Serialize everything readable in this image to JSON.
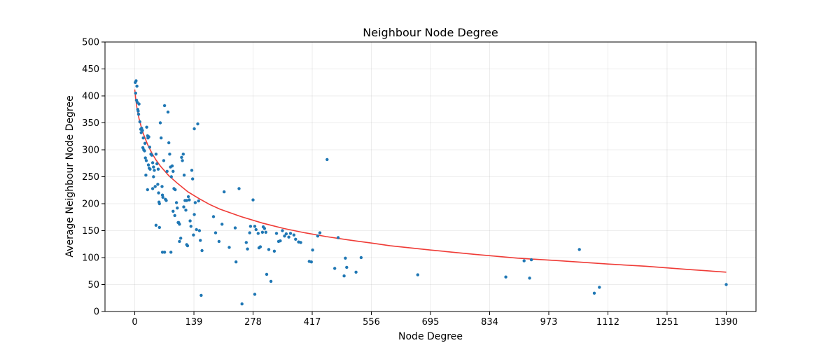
{
  "chart_data": {
    "type": "scatter",
    "title": "Neighbour Node Degree",
    "xlabel": "Node Degree",
    "ylabel": "Average Neighbour Node Degree",
    "xlim": [
      -70,
      1460
    ],
    "ylim": [
      0,
      500
    ],
    "xticks": [
      0,
      139,
      278,
      417,
      556,
      695,
      834,
      973,
      1112,
      1251,
      1390
    ],
    "yticks": [
      0,
      50,
      100,
      150,
      200,
      250,
      300,
      350,
      400,
      450,
      500
    ],
    "grid": true,
    "colors": {
      "points": "#1f77b4",
      "fit": "#ef3b36"
    },
    "series": [
      {
        "type": "scatter",
        "points": [
          [
            1,
            425
          ],
          [
            3,
            428
          ],
          [
            5,
            418
          ],
          [
            2,
            405
          ],
          [
            4,
            392
          ],
          [
            6,
            388
          ],
          [
            7,
            375
          ],
          [
            8,
            372
          ],
          [
            9,
            366
          ],
          [
            10,
            385
          ],
          [
            12,
            352
          ],
          [
            14,
            338
          ],
          [
            15,
            332
          ],
          [
            16,
            340
          ],
          [
            18,
            336
          ],
          [
            20,
            322
          ],
          [
            19,
            304
          ],
          [
            21,
            300
          ],
          [
            23,
            298
          ],
          [
            24,
            312
          ],
          [
            25,
            285
          ],
          [
            27,
            280
          ],
          [
            26,
            253
          ],
          [
            28,
            342
          ],
          [
            30,
            326
          ],
          [
            31,
            322
          ],
          [
            33,
            324
          ],
          [
            35,
            305
          ],
          [
            32,
            272
          ],
          [
            34,
            266
          ],
          [
            36,
            264
          ],
          [
            38,
            292
          ],
          [
            40,
            290
          ],
          [
            42,
            276
          ],
          [
            44,
            268
          ],
          [
            46,
            262
          ],
          [
            30,
            226
          ],
          [
            42,
            228
          ],
          [
            44,
            250
          ],
          [
            48,
            232
          ],
          [
            50,
            292
          ],
          [
            52,
            274
          ],
          [
            54,
            236
          ],
          [
            55,
            264
          ],
          [
            56,
            220
          ],
          [
            57,
            203
          ],
          [
            58,
            200
          ],
          [
            60,
            350
          ],
          [
            62,
            322
          ],
          [
            64,
            232
          ],
          [
            65,
            216
          ],
          [
            66,
            212
          ],
          [
            68,
            280
          ],
          [
            70,
            382
          ],
          [
            72,
            208
          ],
          [
            74,
            206
          ],
          [
            76,
            260
          ],
          [
            78,
            370
          ],
          [
            80,
            313
          ],
          [
            82,
            292
          ],
          [
            84,
            268
          ],
          [
            86,
            250
          ],
          [
            88,
            270
          ],
          [
            90,
            260
          ],
          [
            92,
            228
          ],
          [
            95,
            226
          ],
          [
            98,
            202
          ],
          [
            100,
            192
          ],
          [
            103,
            165
          ],
          [
            105,
            162
          ],
          [
            108,
            136
          ],
          [
            110,
            286
          ],
          [
            112,
            280
          ],
          [
            114,
            292
          ],
          [
            116,
            253
          ],
          [
            118,
            206
          ],
          [
            120,
            188
          ],
          [
            122,
            124
          ],
          [
            124,
            122
          ],
          [
            126,
            213
          ],
          [
            128,
            207
          ],
          [
            130,
            168
          ],
          [
            132,
            158
          ],
          [
            134,
            262
          ],
          [
            136,
            246
          ],
          [
            138,
            142
          ],
          [
            140,
            180
          ],
          [
            142,
            202
          ],
          [
            145,
            152
          ],
          [
            148,
            348
          ],
          [
            150,
            205
          ],
          [
            152,
            150
          ],
          [
            154,
            132
          ],
          [
            156,
            30
          ],
          [
            158,
            113
          ],
          [
            140,
            339
          ],
          [
            50,
            160
          ],
          [
            58,
            156
          ],
          [
            65,
            110
          ],
          [
            70,
            110
          ],
          [
            85,
            110
          ],
          [
            90,
            186
          ],
          [
            94,
            178
          ],
          [
            102,
            165
          ],
          [
            105,
            130
          ],
          [
            122,
            206
          ],
          [
            115,
            194
          ],
          [
            185,
            176
          ],
          [
            190,
            146
          ],
          [
            198,
            130
          ],
          [
            205,
            162
          ],
          [
            210,
            222
          ],
          [
            222,
            119
          ],
          [
            236,
            155
          ],
          [
            238,
            92
          ],
          [
            245,
            228
          ],
          [
            252,
            14
          ],
          [
            262,
            128
          ],
          [
            265,
            116
          ],
          [
            270,
            146
          ],
          [
            272,
            158
          ],
          [
            278,
            207
          ],
          [
            282,
            158
          ],
          [
            285,
            152
          ],
          [
            290,
            145
          ],
          [
            292,
            118
          ],
          [
            295,
            120
          ],
          [
            300,
            147
          ],
          [
            302,
            157
          ],
          [
            305,
            154
          ],
          [
            308,
            147
          ],
          [
            310,
            69
          ],
          [
            315,
            115
          ],
          [
            320,
            56
          ],
          [
            328,
            112
          ],
          [
            333,
            145
          ],
          [
            338,
            130
          ],
          [
            342,
            131
          ],
          [
            347,
            150
          ],
          [
            352,
            140
          ],
          [
            356,
            144
          ],
          [
            362,
            138
          ],
          [
            366,
            145
          ],
          [
            374,
            142
          ],
          [
            378,
            134
          ],
          [
            385,
            129
          ],
          [
            390,
            128
          ],
          [
            410,
            93
          ],
          [
            415,
            92
          ],
          [
            418,
            114
          ],
          [
            430,
            140
          ],
          [
            435,
            146
          ],
          [
            452,
            282
          ],
          [
            470,
            80
          ],
          [
            478,
            137
          ],
          [
            492,
            66
          ],
          [
            495,
            99
          ],
          [
            498,
            82
          ],
          [
            520,
            73
          ],
          [
            532,
            100
          ],
          [
            665,
            68
          ],
          [
            872,
            64
          ],
          [
            915,
            94
          ],
          [
            928,
            62
          ],
          [
            932,
            96
          ],
          [
            1045,
            115
          ],
          [
            1080,
            34
          ],
          [
            1092,
            45
          ],
          [
            1390,
            50
          ],
          [
            282,
            32
          ]
        ]
      },
      {
        "type": "line",
        "points": [
          [
            0,
            412
          ],
          [
            2,
            395
          ],
          [
            5,
            378
          ],
          [
            10,
            358
          ],
          [
            15,
            343
          ],
          [
            20,
            330
          ],
          [
            30,
            310
          ],
          [
            40,
            294
          ],
          [
            50,
            281
          ],
          [
            60,
            270
          ],
          [
            80,
            252
          ],
          [
            100,
            238
          ],
          [
            125,
            222
          ],
          [
            150,
            210
          ],
          [
            175,
            199
          ],
          [
            200,
            190
          ],
          [
            250,
            176
          ],
          [
            300,
            164
          ],
          [
            350,
            154
          ],
          [
            400,
            146
          ],
          [
            450,
            139
          ],
          [
            500,
            133
          ],
          [
            556,
            127
          ],
          [
            600,
            122
          ],
          [
            695,
            114
          ],
          [
            800,
            106
          ],
          [
            900,
            99
          ],
          [
            1000,
            94
          ],
          [
            1112,
            88
          ],
          [
            1200,
            84
          ],
          [
            1300,
            78
          ],
          [
            1390,
            73
          ]
        ]
      }
    ]
  }
}
